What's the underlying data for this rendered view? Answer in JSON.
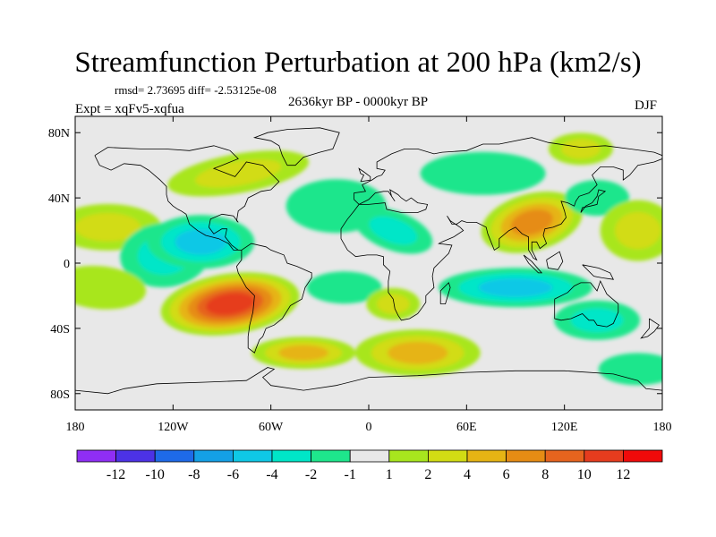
{
  "header": {
    "title": "Streamfunction Perturbation at 200 hPa (km2/s)",
    "stats": "rmsd= 2.73695 diff= -2.53125e-08",
    "period": "2636kyr BP - 0000kyr BP",
    "experiment": "Expt = xqFv5-xqfua",
    "season": "DJF"
  },
  "chart_data": {
    "type": "heatmap",
    "title": "Streamfunction Perturbation at 200 hPa (km2/s)",
    "projection": "cylindrical equidistant",
    "x_range": [
      -180,
      180
    ],
    "y_range": [
      -90,
      90
    ],
    "x_ticks": [
      {
        "value": -180,
        "label": "180"
      },
      {
        "value": -120,
        "label": "120W"
      },
      {
        "value": -60,
        "label": "60W"
      },
      {
        "value": 0,
        "label": "0"
      },
      {
        "value": 60,
        "label": "60E"
      },
      {
        "value": 120,
        "label": "120E"
      },
      {
        "value": 180,
        "label": "180"
      }
    ],
    "y_ticks": [
      {
        "value": 80,
        "label": "80N"
      },
      {
        "value": 40,
        "label": "40N"
      },
      {
        "value": 0,
        "label": "0"
      },
      {
        "value": -40,
        "label": "40S"
      },
      {
        "value": -80,
        "label": "80S"
      }
    ],
    "colorbar": {
      "labels": [
        "-12",
        "-10",
        "-8",
        "-6",
        "-4",
        "-2",
        "-1",
        "1",
        "2",
        "4",
        "6",
        "8",
        "10",
        "12"
      ],
      "colors": [
        "#8f2ef5",
        "#4c32e6",
        "#1e6ae8",
        "#14a0e6",
        "#0fc8e6",
        "#00e6c8",
        "#1ee68c",
        "#e8e8e8",
        "#a8e61e",
        "#d2dc14",
        "#e6b414",
        "#e68c14",
        "#e6641e",
        "#e63c1e",
        "#f00a0a"
      ]
    },
    "fields": [
      {
        "lon": -160,
        "lat": 22,
        "level": 9
      },
      {
        "lon": -125,
        "lat": 5,
        "level": 5
      },
      {
        "lon": -103,
        "lat": 13,
        "level": 4
      },
      {
        "lon": -80,
        "lat": 55,
        "level": 9
      },
      {
        "lon": -85,
        "lat": -25,
        "level": 13
      },
      {
        "lon": -165,
        "lat": -15,
        "level": 8
      },
      {
        "lon": -40,
        "lat": -55,
        "level": 10
      },
      {
        "lon": -20,
        "lat": 35,
        "level": 6
      },
      {
        "lon": -15,
        "lat": -15,
        "level": 6
      },
      {
        "lon": 15,
        "lat": 20,
        "level": 5
      },
      {
        "lon": 70,
        "lat": 55,
        "level": 6
      },
      {
        "lon": 100,
        "lat": 25,
        "level": 11
      },
      {
        "lon": 140,
        "lat": 40,
        "level": 6
      },
      {
        "lon": 165,
        "lat": 20,
        "level": 9
      },
      {
        "lon": 130,
        "lat": 70,
        "level": 9
      },
      {
        "lon": 15,
        "lat": -25,
        "level": 9
      },
      {
        "lon": 90,
        "lat": -15,
        "level": 4
      },
      {
        "lon": 30,
        "lat": -55,
        "level": 10
      },
      {
        "lon": 140,
        "lat": -35,
        "level": 5
      },
      {
        "lon": 165,
        "lat": -65,
        "level": 6
      }
    ]
  }
}
